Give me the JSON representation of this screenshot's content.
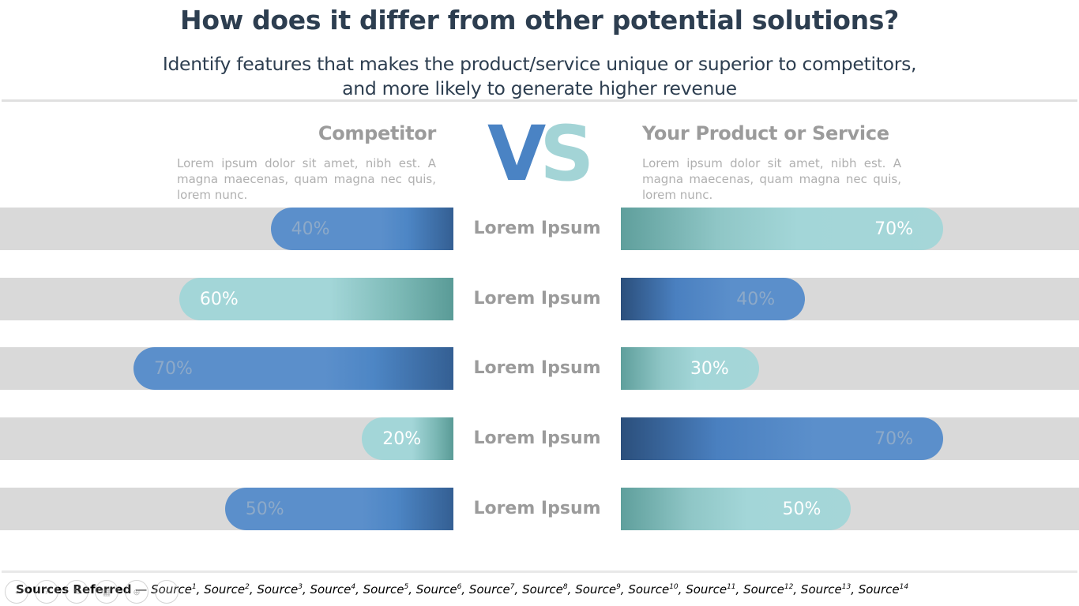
{
  "slide": {
    "title": "How does it differ from other potential solutions?",
    "subtitle_line1": "Identify features that makes the product/service unique or superior to competitors,",
    "subtitle_line2": "and more likely to generate higher revenue"
  },
  "vs": {
    "v": "V",
    "s": "S"
  },
  "competitor": {
    "heading": "Competitor",
    "description": "Lorem ipsum dolor sit amet, nibh est. A magna maecenas, quam magna nec quis, lorem nunc."
  },
  "product": {
    "heading": "Your Product or Service",
    "description": "Lorem ipsum dolor sit amet, nibh est. A magna maecenas, quam magna nec quis, lorem nunc."
  },
  "rows": [
    {
      "label": "Lorem Ipsum",
      "competitor": {
        "text": "40%",
        "value": 0.4,
        "color": "blue"
      },
      "product": {
        "text": "70%",
        "value": 0.7,
        "color": "teal"
      }
    },
    {
      "label": "Lorem Ipsum",
      "competitor": {
        "text": "60%",
        "value": 0.6,
        "color": "teal"
      },
      "product": {
        "text": "40%",
        "value": 0.4,
        "color": "blue"
      }
    },
    {
      "label": "Lorem Ipsum",
      "competitor": {
        "text": "70%",
        "value": 0.7,
        "color": "blue"
      },
      "product": {
        "text": "30%",
        "value": 0.3,
        "color": "teal"
      }
    },
    {
      "label": "Lorem Ipsum",
      "competitor": {
        "text": "20%",
        "value": 0.2,
        "color": "teal"
      },
      "product": {
        "text": "70%",
        "value": 0.7,
        "color": "blue"
      }
    },
    {
      "label": "Lorem Ipsum",
      "competitor": {
        "text": "50%",
        "value": 0.5,
        "color": "blue"
      },
      "product": {
        "text": "50%",
        "value": 0.5,
        "color": "teal"
      }
    }
  ],
  "sources": {
    "label": "Sources Referred",
    "separator": " — ",
    "items": [
      "Source",
      "Source",
      "Source",
      "Source",
      "Source",
      "Source",
      "Source",
      "Source",
      "Source",
      "Source",
      "Source",
      "Source",
      "Source",
      "Source"
    ],
    "superscripts": [
      "1",
      "2",
      "3",
      "4",
      "5",
      "6",
      "7",
      "8",
      "9",
      "10",
      "11",
      "12",
      "13",
      "14"
    ]
  },
  "toolbar": {
    "buttons": [
      {
        "icon": "previous-icon",
        "glyph": "‹"
      },
      {
        "icon": "next-icon",
        "glyph": "›"
      },
      {
        "icon": "pen-icon",
        "glyph": "✎"
      },
      {
        "icon": "slides-icon",
        "glyph": "▦"
      },
      {
        "icon": "zoom-icon",
        "glyph": "⊕"
      },
      {
        "icon": "more-icon",
        "glyph": "⋯"
      }
    ]
  },
  "colors": {
    "title": "#2d3e50",
    "blue": "#5b8fcb",
    "teal": "#a3d6d8",
    "track": "#d9d9d9",
    "muted_text": "#9b9b9b"
  }
}
